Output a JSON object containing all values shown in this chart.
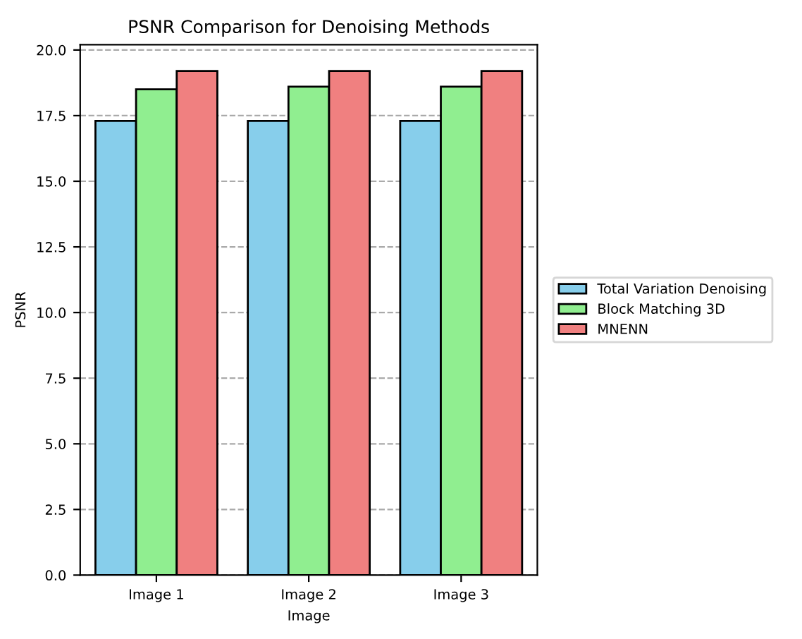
{
  "chart_data": {
    "type": "bar",
    "title": "PSNR Comparison for Denoising Methods",
    "xlabel": "Image",
    "ylabel": "PSNR",
    "categories": [
      "Image 1",
      "Image 2",
      "Image 3"
    ],
    "series": [
      {
        "name": "Total Variation Denoising",
        "color": "#87ceeb",
        "values": [
          17.3,
          17.3,
          17.3
        ]
      },
      {
        "name": "Block Matching 3D",
        "color": "#90ee90",
        "values": [
          18.5,
          18.6,
          18.6
        ]
      },
      {
        "name": "MNENN",
        "color": "#f08080",
        "values": [
          19.2,
          19.2,
          19.2
        ]
      }
    ],
    "ylim": [
      0,
      20.2
    ],
    "yticks": [
      {
        "value": 0,
        "label": "0.0"
      },
      {
        "value": 2.5,
        "label": "2.5"
      },
      {
        "value": 5,
        "label": "5.0"
      },
      {
        "value": 7.5,
        "label": "7.5"
      },
      {
        "value": 10,
        "label": "10.0"
      },
      {
        "value": 12.5,
        "label": "12.5"
      },
      {
        "value": 15,
        "label": "15.0"
      },
      {
        "value": 17.5,
        "label": "17.5"
      },
      {
        "value": 20,
        "label": "20.0"
      }
    ],
    "grid": "y",
    "legend": "right"
  }
}
